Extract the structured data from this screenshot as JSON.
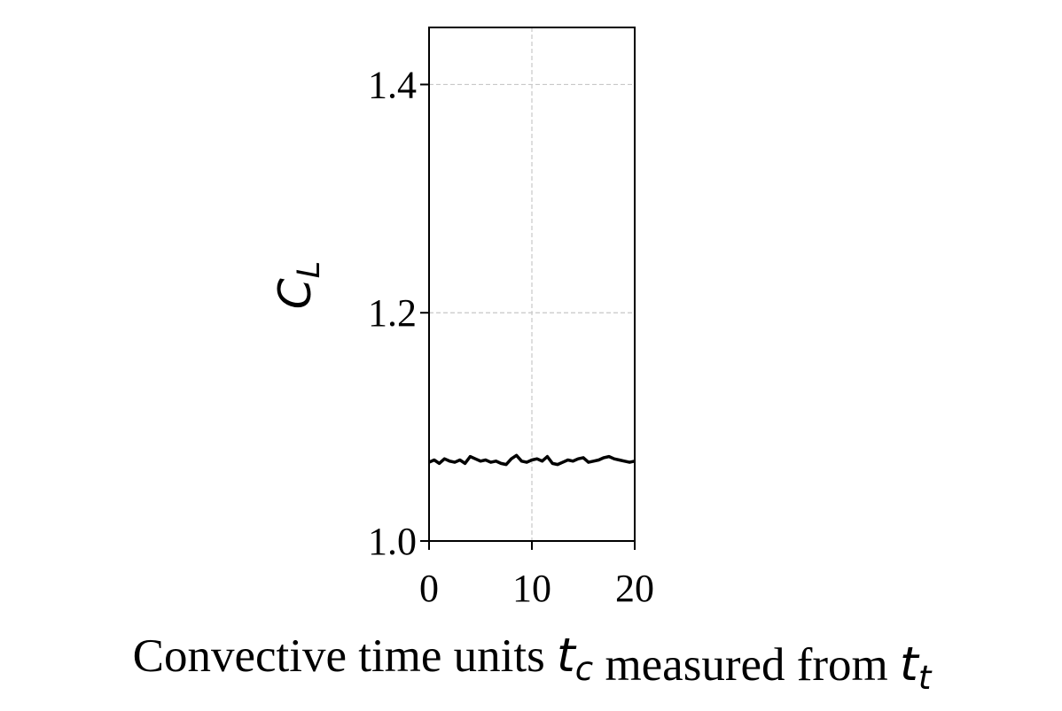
{
  "chart_data": {
    "type": "line",
    "xlabel": [
      {
        "text": "Convective time units "
      },
      {
        "text": "t",
        "sub": "c"
      },
      {
        "text": " measured from "
      },
      {
        "text": "t",
        "sub": "t"
      }
    ],
    "ylabel": [
      {
        "text": "C",
        "sub": "L"
      }
    ],
    "x": [
      0,
      0.5,
      1,
      1.5,
      2,
      2.5,
      3,
      3.5,
      4,
      4.5,
      5,
      5.5,
      6,
      6.5,
      7,
      7.5,
      8,
      8.5,
      9,
      9.5,
      10,
      10.5,
      11,
      11.5,
      12,
      12.5,
      13,
      13.5,
      14,
      14.5,
      15,
      15.5,
      16,
      16.5,
      17,
      17.5,
      18,
      18.5,
      19,
      19.5,
      20
    ],
    "series": [
      {
        "color": "#000000",
        "values": [
          1.069,
          1.071,
          1.068,
          1.072,
          1.07,
          1.069,
          1.071,
          1.068,
          1.074,
          1.072,
          1.07,
          1.071,
          1.069,
          1.07,
          1.068,
          1.067,
          1.072,
          1.075,
          1.07,
          1.069,
          1.071,
          1.072,
          1.07,
          1.074,
          1.068,
          1.067,
          1.069,
          1.071,
          1.07,
          1.072,
          1.073,
          1.069,
          1.07,
          1.071,
          1.073,
          1.074,
          1.072,
          1.071,
          1.07,
          1.069,
          1.07
        ]
      }
    ],
    "xlim": [
      0,
      20
    ],
    "xticks": [
      0,
      10,
      20
    ],
    "ylim": [
      1.0,
      1.45
    ],
    "yticks": [
      {
        "value": 1.0,
        "label": "1.0"
      },
      {
        "value": 1.2,
        "label": "1.2"
      },
      {
        "value": 1.4,
        "label": "1.4"
      }
    ],
    "grid": true
  }
}
